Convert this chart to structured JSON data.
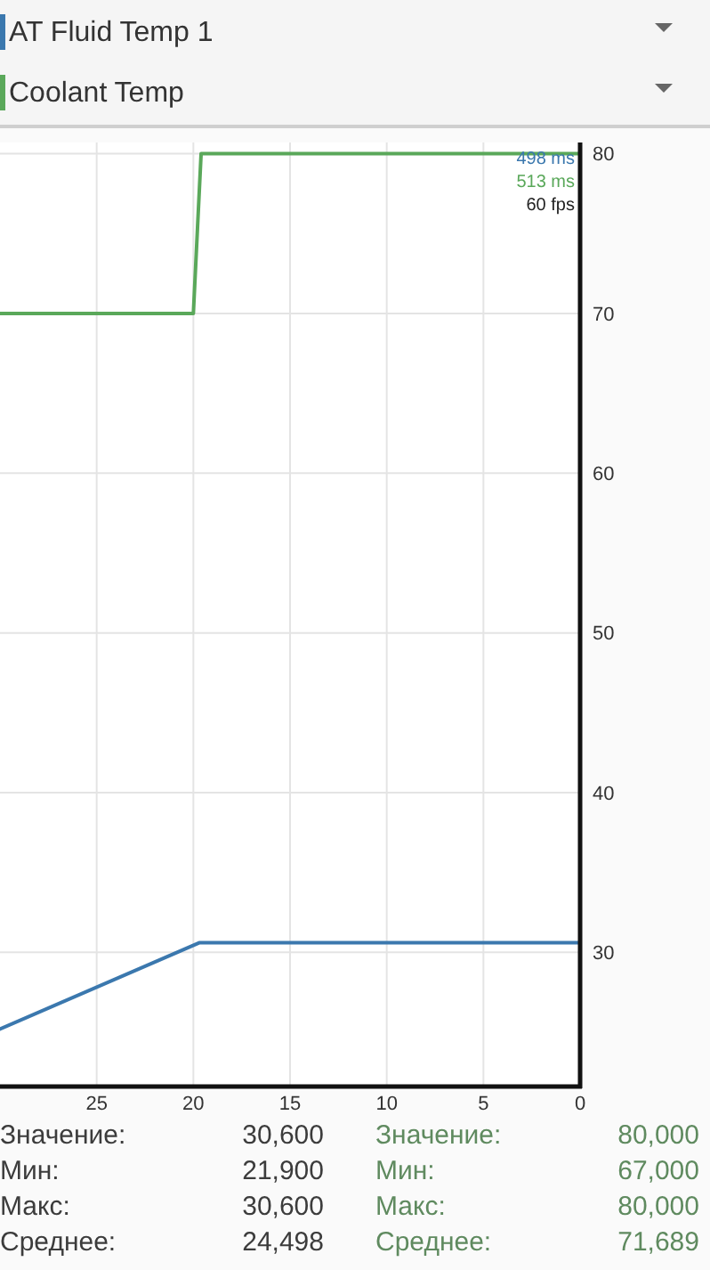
{
  "chart_data": {
    "type": "line",
    "xlim": [
      30,
      0
    ],
    "xticks": [
      25,
      20,
      15,
      10,
      5,
      0
    ],
    "ylim": [
      21.6,
      80.7
    ],
    "yticks": [
      30,
      40,
      50,
      60,
      70,
      80
    ],
    "grid": true,
    "legend": "top",
    "line_style": "solid",
    "series": [
      {
        "name": "AT Fluid Temp 1",
        "color": "#3b78ae",
        "x": [
          30,
          19.7,
          0
        ],
        "values": [
          25.2,
          30.6,
          30.6
        ]
      },
      {
        "name": "Coolant Temp",
        "color": "#5aa85a",
        "x": [
          30,
          20,
          19.6,
          0
        ],
        "values": [
          70,
          70,
          80,
          80
        ]
      }
    ],
    "annotations": [
      "498 ms",
      "513 ms",
      "60 fps",
      "Значение:",
      "30,600",
      "Значение:",
      "80,000",
      "Мин:",
      "21,900",
      "Мин:",
      "67,000",
      "Макс:",
      "30,600",
      "Макс:",
      "80,000",
      "Среднее:",
      "24,498",
      "Среднее:",
      "71,689"
    ]
  }
}
